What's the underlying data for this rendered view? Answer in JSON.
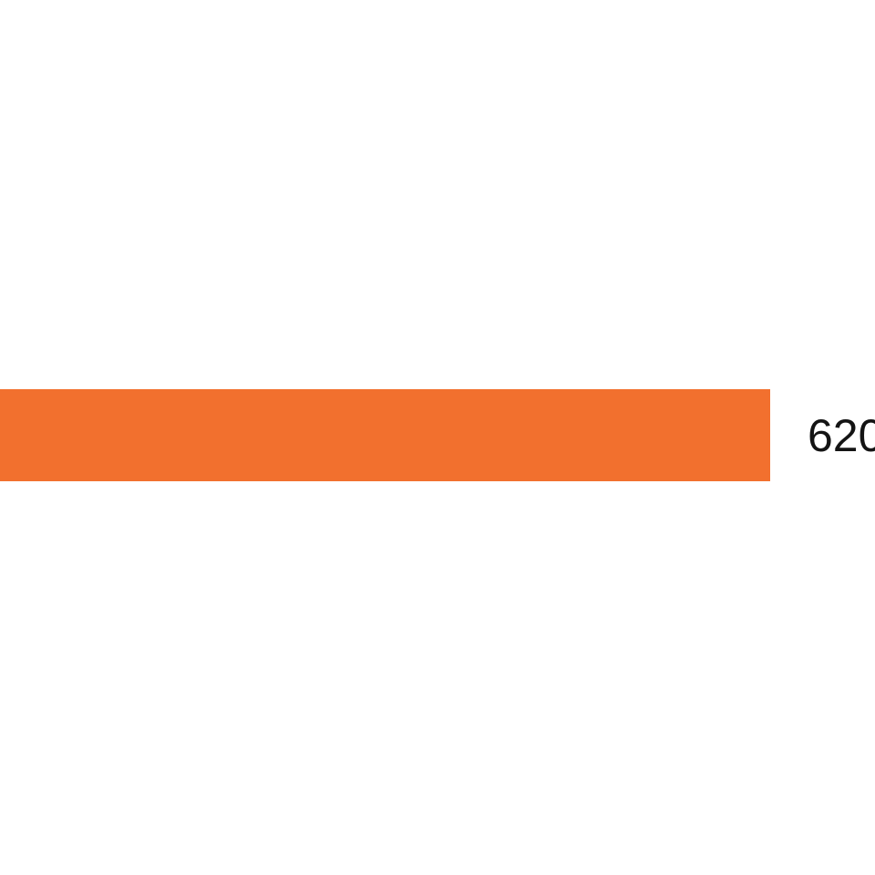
{
  "page": {
    "background_color": "#ffffff"
  },
  "swatch": {
    "label": "620",
    "bar_color": "#F2702E",
    "label_color": "#141414"
  }
}
